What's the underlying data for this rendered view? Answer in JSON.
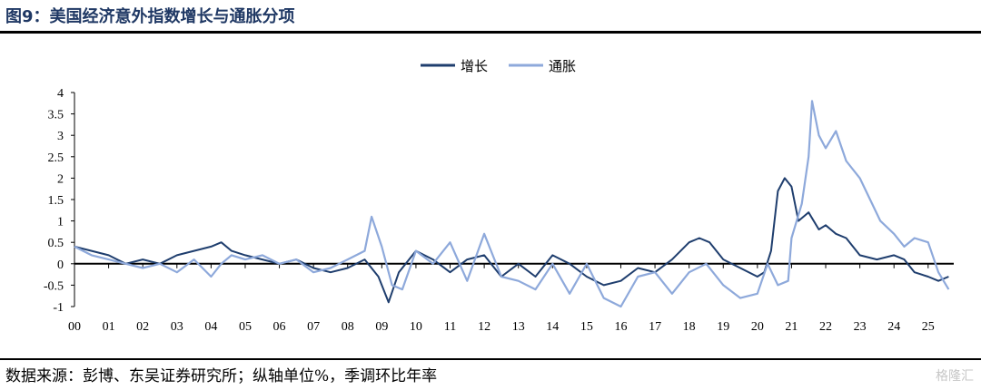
{
  "header": {
    "title": "图9：美国经济意外指数增长与通胀分项"
  },
  "footer": {
    "source": "数据来源：彭博、东吴证券研究所；纵轴单位%，季调环比年率",
    "watermark": "格隆汇"
  },
  "colors": {
    "growth": "#1f3e6e",
    "inflation": "#8ea9db",
    "axis": "#000000"
  },
  "chart_data": {
    "type": "line",
    "title": "",
    "xlabel": "",
    "ylabel": "",
    "ylim": [
      -1,
      4
    ],
    "yticks": [
      -1,
      -0.5,
      0,
      0.5,
      1,
      1.5,
      2,
      2.5,
      3,
      3.5,
      4
    ],
    "ytick_labels": [
      "-1",
      "-0.5",
      "0",
      "0.5",
      "1",
      "1.5",
      "2",
      "2.5",
      "3",
      "3.5",
      "4"
    ],
    "xlim": [
      2000,
      2025.75
    ],
    "xtick_labels": [
      "00",
      "01",
      "02",
      "03",
      "04",
      "05",
      "06",
      "07",
      "08",
      "09",
      "10",
      "11",
      "12",
      "13",
      "14",
      "15",
      "16",
      "17",
      "18",
      "19",
      "20",
      "21",
      "22",
      "23",
      "24",
      "25"
    ],
    "legend_position": "top-center",
    "grid": false,
    "series": [
      {
        "name": "增长",
        "x": [
          2000,
          2000.5,
          2001,
          2001.5,
          2002,
          2002.5,
          2003,
          2003.5,
          2004,
          2004.3,
          2004.6,
          2005,
          2005.5,
          2006,
          2006.5,
          2007,
          2007.5,
          2008,
          2008.5,
          2008.9,
          2009.2,
          2009.5,
          2010,
          2010.5,
          2011,
          2011.5,
          2012,
          2012.5,
          2013,
          2013.5,
          2014,
          2014.5,
          2015,
          2015.5,
          2016,
          2016.5,
          2017,
          2017.5,
          2018,
          2018.3,
          2018.6,
          2019,
          2019.5,
          2020,
          2020.2,
          2020.4,
          2020.6,
          2020.8,
          2021,
          2021.2,
          2021.5,
          2021.8,
          2022,
          2022.3,
          2022.6,
          2023,
          2023.5,
          2024,
          2024.3,
          2024.6,
          2025,
          2025.3,
          2025.6
        ],
        "values": [
          0.4,
          0.3,
          0.2,
          0.0,
          0.1,
          0.0,
          0.2,
          0.3,
          0.4,
          0.5,
          0.3,
          0.2,
          0.1,
          0.0,
          0.1,
          -0.1,
          -0.2,
          -0.1,
          0.1,
          -0.3,
          -0.9,
          -0.2,
          0.3,
          0.1,
          -0.2,
          0.1,
          0.2,
          -0.3,
          0.0,
          -0.3,
          0.2,
          0.0,
          -0.3,
          -0.5,
          -0.4,
          -0.1,
          -0.2,
          0.1,
          0.5,
          0.6,
          0.5,
          0.1,
          -0.1,
          -0.3,
          -0.2,
          0.3,
          1.7,
          2.0,
          1.8,
          1.0,
          1.2,
          0.8,
          0.9,
          0.7,
          0.6,
          0.2,
          0.1,
          0.2,
          0.1,
          -0.2,
          -0.3,
          -0.4,
          -0.3
        ]
      },
      {
        "name": "通胀",
        "x": [
          2000,
          2000.5,
          2001,
          2001.5,
          2002,
          2002.5,
          2003,
          2003.5,
          2004,
          2004.3,
          2004.6,
          2005,
          2005.5,
          2006,
          2006.5,
          2007,
          2007.5,
          2008,
          2008.5,
          2008.7,
          2009,
          2009.3,
          2009.6,
          2010,
          2010.5,
          2011,
          2011.5,
          2012,
          2012.5,
          2013,
          2013.5,
          2014,
          2014.5,
          2015,
          2015.5,
          2016,
          2016.5,
          2017,
          2017.5,
          2018,
          2018.5,
          2019,
          2019.5,
          2020,
          2020.3,
          2020.6,
          2020.9,
          2021,
          2021.3,
          2021.5,
          2021.6,
          2021.8,
          2022,
          2022.3,
          2022.6,
          2023,
          2023.3,
          2023.6,
          2024,
          2024.3,
          2024.6,
          2025,
          2025.3,
          2025.6
        ],
        "values": [
          0.4,
          0.2,
          0.1,
          0.0,
          -0.1,
          0.0,
          -0.2,
          0.1,
          -0.3,
          0.0,
          0.2,
          0.1,
          0.2,
          0.0,
          0.1,
          -0.2,
          -0.1,
          0.1,
          0.3,
          1.1,
          0.4,
          -0.5,
          -0.6,
          0.3,
          0.0,
          0.5,
          -0.4,
          0.7,
          -0.3,
          -0.4,
          -0.6,
          0.0,
          -0.7,
          0.0,
          -0.8,
          -1.0,
          -0.3,
          -0.2,
          -0.7,
          -0.2,
          0.0,
          -0.5,
          -0.8,
          -0.7,
          0.0,
          -0.5,
          -0.4,
          0.6,
          1.4,
          2.5,
          3.8,
          3.0,
          2.7,
          3.1,
          2.4,
          2.0,
          1.5,
          1.0,
          0.7,
          0.4,
          0.6,
          0.5,
          -0.2,
          -0.6
        ]
      }
    ]
  }
}
